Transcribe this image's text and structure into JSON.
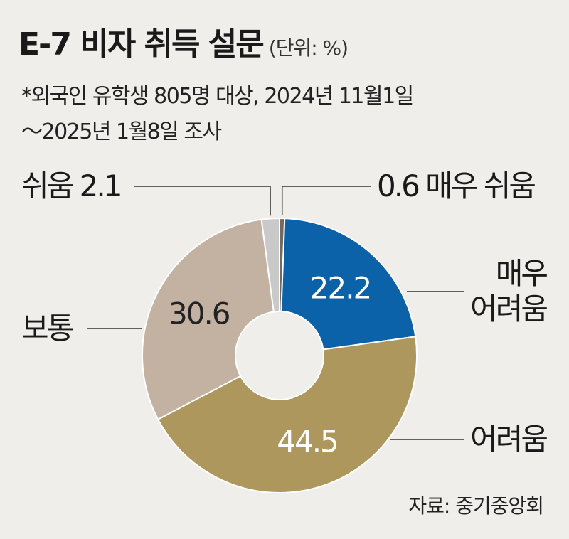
{
  "header": {
    "title": "E-7 비자 취득 설문",
    "unit": "(단위: %)",
    "note_line1": "*외국인 유학생 805명 대상, 2024년 11월1일",
    "note_line2": "～2025년 1월8일 조사"
  },
  "source": "자료: 중기중앙회",
  "chart_data": {
    "type": "pie",
    "donut": true,
    "title": "E-7 비자 취득 설문",
    "unit": "%",
    "slices": [
      {
        "label": "매우 쉬움",
        "value": 0.6,
        "color": "#6f6a64",
        "label_text": "0.6 매우 쉬움",
        "label_lines": []
      },
      {
        "label": "매우 어려움",
        "value": 22.2,
        "color": "#0b62a8",
        "label_text": "22.2",
        "label_lines": [
          "매우",
          "어려움"
        ]
      },
      {
        "label": "어려움",
        "value": 44.5,
        "color": "#ae975c",
        "label_text": "44.5",
        "label_lines": [
          "어려움"
        ]
      },
      {
        "label": "보통",
        "value": 30.6,
        "color": "#c3b2a2",
        "label_text": "30.6",
        "label_lines": [
          "보통"
        ]
      },
      {
        "label": "쉬움",
        "value": 2.1,
        "color": "#c9c9c9",
        "label_text": "쉬움 2.1",
        "label_lines": []
      }
    ]
  }
}
